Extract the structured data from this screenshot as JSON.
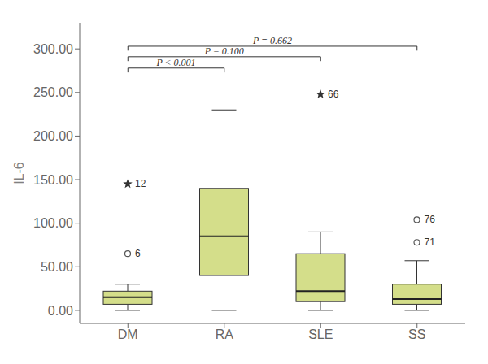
{
  "chart_data": {
    "type": "box",
    "categories": [
      "DM",
      "RA",
      "SLE",
      "SS"
    ],
    "boxes": [
      {
        "q1": 7,
        "median": 15,
        "q3": 22,
        "whislo": 0,
        "whishi": 30,
        "fliers": [
          {
            "value": 65,
            "label": "6",
            "marker": "circle"
          },
          {
            "value": 145,
            "label": "12",
            "marker": "star"
          }
        ]
      },
      {
        "q1": 40,
        "median": 85,
        "q3": 140,
        "whislo": 0,
        "whishi": 230,
        "fliers": []
      },
      {
        "q1": 10,
        "median": 22,
        "q3": 65,
        "whislo": 0,
        "whishi": 90,
        "fliers": [
          {
            "value": 248,
            "label": "66",
            "marker": "star"
          }
        ]
      },
      {
        "q1": 7,
        "median": 13,
        "q3": 30,
        "whislo": 0,
        "whishi": 57,
        "fliers": [
          {
            "value": 78,
            "label": "71",
            "marker": "circle"
          },
          {
            "value": 104,
            "label": "76",
            "marker": "circle"
          }
        ]
      }
    ],
    "color": "#d4de8a",
    "ylabel": "IL-6",
    "ylim": [
      -15,
      330
    ],
    "yticks": [
      {
        "value": 0,
        "label": "0.00"
      },
      {
        "value": 50,
        "label": "50.00"
      },
      {
        "value": 100,
        "label": "100.00"
      },
      {
        "value": 150,
        "label": "150.00"
      },
      {
        "value": 200,
        "label": "200.00"
      },
      {
        "value": 250,
        "label": "250.00"
      },
      {
        "value": 300,
        "label": "300.00"
      }
    ],
    "grid": false,
    "annotations": [
      {
        "x1": "DM",
        "x2": "RA",
        "y": 278,
        "drop": 5,
        "label": "P < 0.001",
        "label_y": 280
      },
      {
        "x1": "DM",
        "x2": "SLE",
        "y": 291,
        "drop": 5,
        "label": "P = 0.100",
        "label_y": 293
      },
      {
        "x1": "DM",
        "x2": "SS",
        "y": 303,
        "drop": 5,
        "label": "P = 0.662",
        "label_y": 305
      }
    ]
  }
}
